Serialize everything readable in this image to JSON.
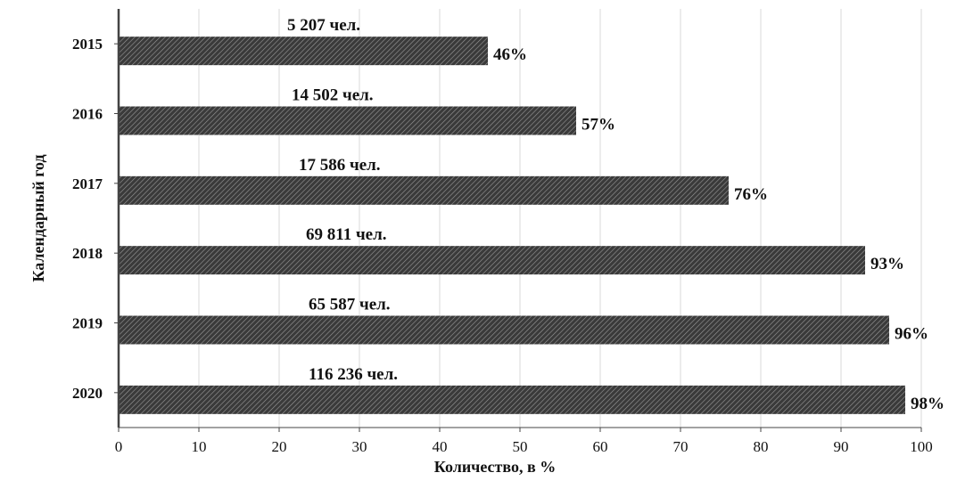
{
  "chart_data": {
    "type": "bar",
    "orientation": "horizontal",
    "categories": [
      "2015",
      "2016",
      "2017",
      "2018",
      "2019",
      "2020"
    ],
    "values": [
      46,
      57,
      76,
      93,
      96,
      98
    ],
    "value_labels": [
      "46%",
      "57%",
      "76%",
      "93%",
      "96%",
      "98%"
    ],
    "count_labels": [
      "5 207 чел.",
      "14 502 чел.",
      "17 586 чел.",
      "69 811 чел.",
      "65 587 чел.",
      "116 236 чел."
    ],
    "xlabel": "Количество, в %",
    "ylabel": "Календарный год",
    "xlim": [
      0,
      100
    ],
    "xticks": [
      "0",
      "10",
      "20",
      "30",
      "40",
      "50",
      "60",
      "70",
      "80",
      "90",
      "100"
    ],
    "grid": "vertical",
    "bar_fill": "diagonal-hatch",
    "colors": {
      "bar": "#3a3a3a",
      "hatch": "#9a9a9a",
      "grid": "#d9d9d9",
      "axis": "#444444"
    }
  }
}
